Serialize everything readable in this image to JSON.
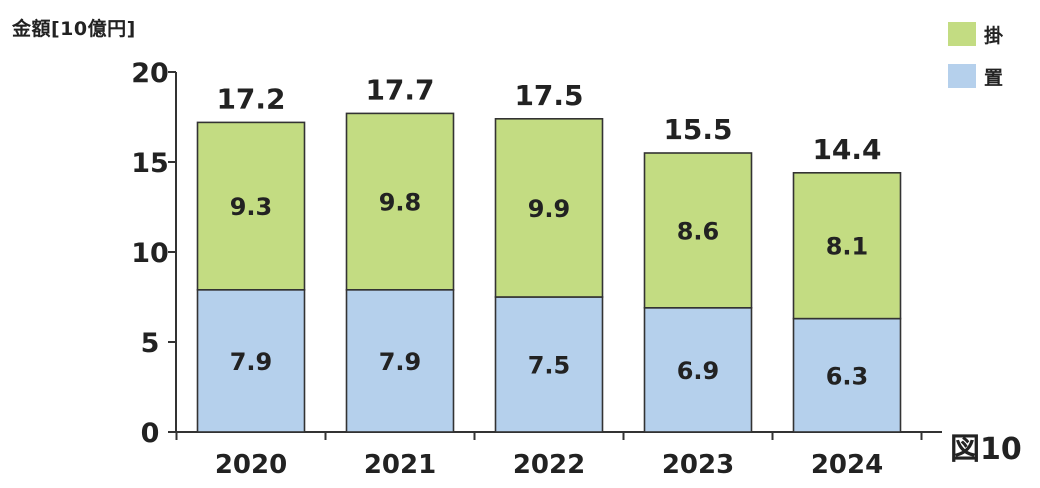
{
  "chart_data": {
    "type": "bar",
    "stacked": true,
    "categories": [
      "2020",
      "2021",
      "2022",
      "2023",
      "2024"
    ],
    "series": [
      {
        "name": "置",
        "color": "#b5d0ec",
        "values": [
          7.9,
          7.9,
          7.5,
          6.9,
          6.3
        ]
      },
      {
        "name": "掛",
        "color": "#c3dc82",
        "values": [
          9.3,
          9.8,
          9.9,
          8.6,
          8.1
        ]
      }
    ],
    "totals": [
      "17.2",
      "17.7",
      "17.5",
      "15.5",
      "14.4"
    ],
    "ylabel": "金額[10億円]",
    "ylim": [
      0,
      20
    ],
    "yticks": [
      0,
      5,
      10,
      15,
      20
    ],
    "grid": false,
    "legend_position": "top-right"
  },
  "figure_label": "図10"
}
